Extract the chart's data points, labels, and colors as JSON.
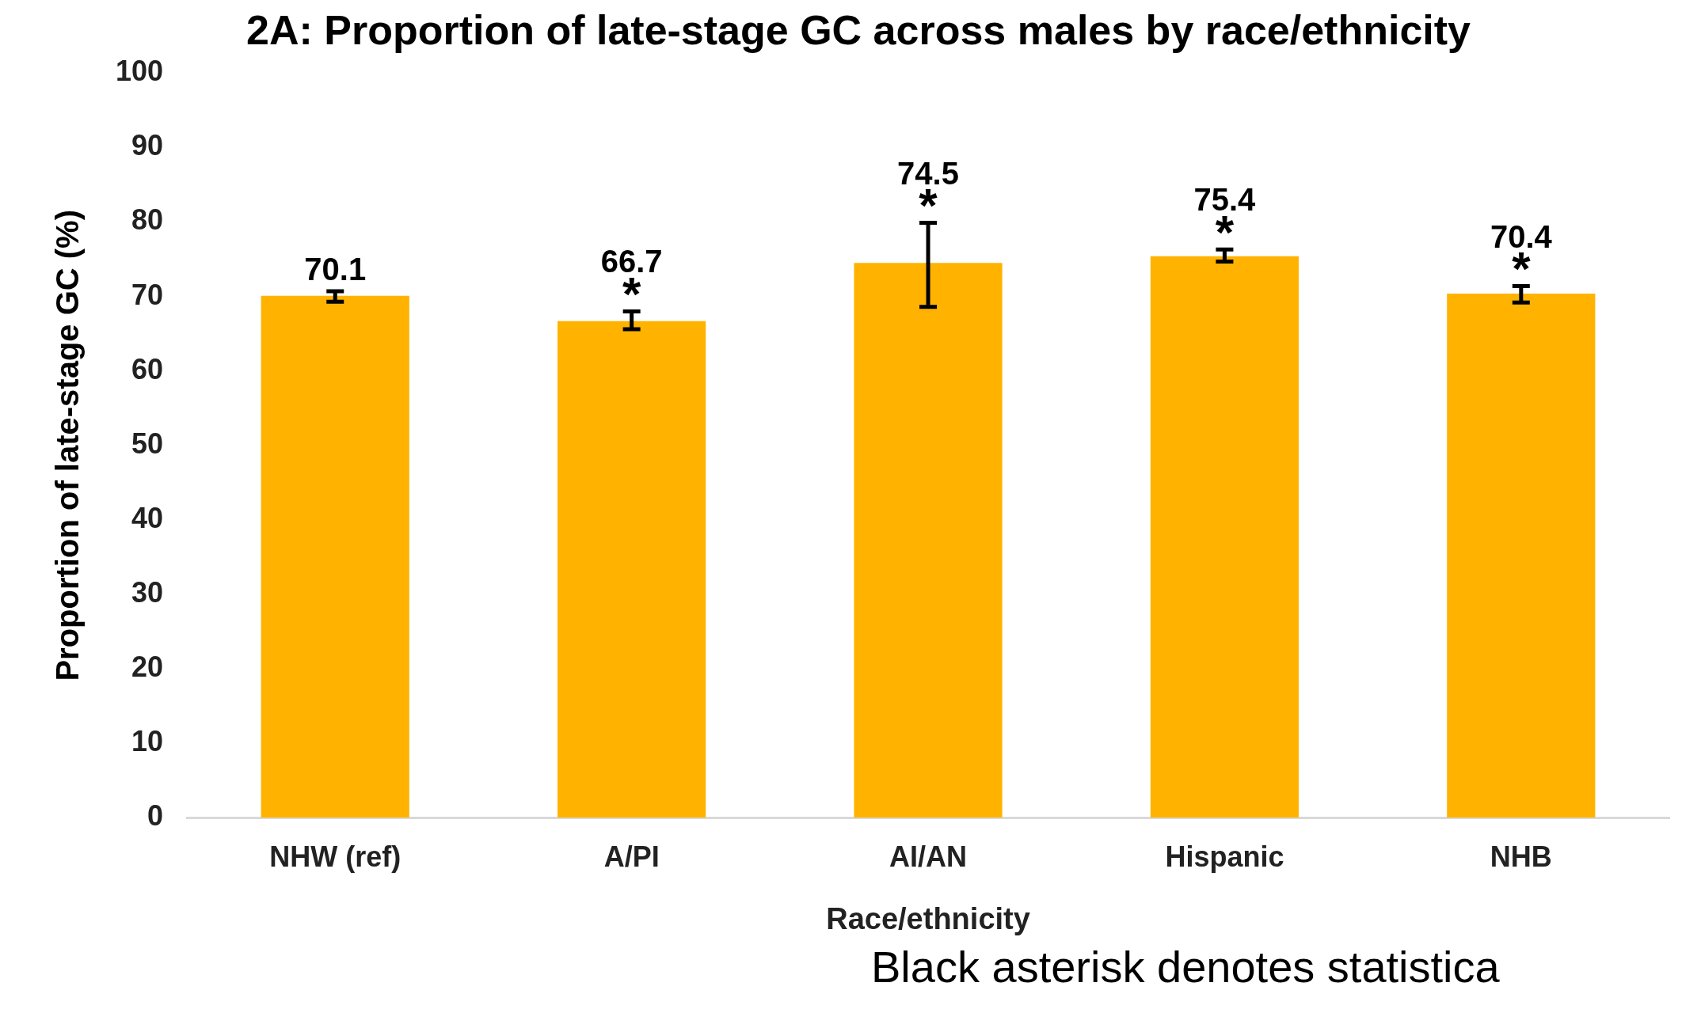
{
  "chart_data": {
    "type": "bar",
    "title": "2A: Proportion of late-stage GC across males by race/ethnicity",
    "xlabel": "Race/ethnicity",
    "ylabel": "Proportion of late-stage GC (%)",
    "categories": [
      "NHW (ref)",
      "A/PI",
      "AI/AN",
      "Hispanic",
      "NHB"
    ],
    "values": [
      70.1,
      66.7,
      74.5,
      75.4,
      70.4
    ],
    "color": "#ffb300",
    "errors": [
      [
        69.3,
        70.7
      ],
      [
        65.6,
        68.0
      ],
      [
        68.6,
        79.9
      ],
      [
        74.7,
        76.3
      ],
      [
        69.2,
        71.4
      ]
    ],
    "ylim": [
      0,
      100
    ],
    "yticks": [
      0,
      10,
      20,
      30,
      40,
      50,
      60,
      70,
      80,
      90,
      100
    ],
    "grid": false,
    "legend": false,
    "data_labels": true,
    "annotations": [
      {
        "text": "*",
        "x": "A/PI",
        "y": 66.7
      },
      {
        "text": "*",
        "x": "AI/AN",
        "y": 74.5
      },
      {
        "text": "*",
        "x": "Hispanic",
        "y": 75.4
      },
      {
        "text": "*",
        "x": "NHB",
        "y": 70.4
      },
      "Black asterisk denotes statistica"
    ]
  }
}
